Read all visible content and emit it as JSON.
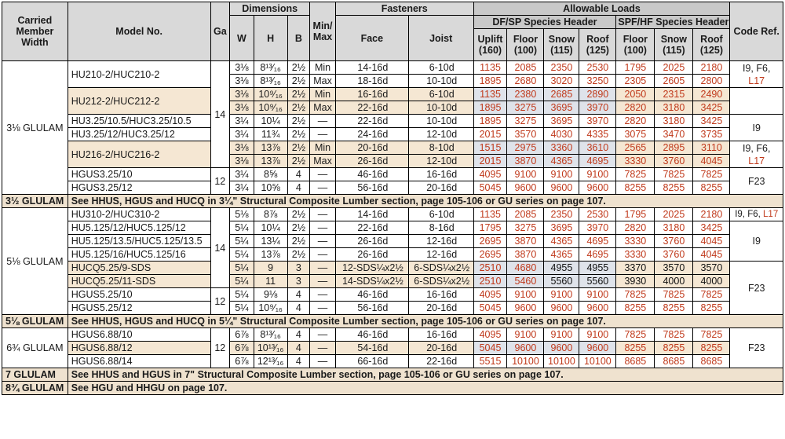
{
  "headers": {
    "carried_member_width": "Carried Member Width",
    "model_no": "Model No.",
    "ga": "Ga",
    "dimensions": "Dimensions",
    "w": "W",
    "h": "H",
    "b": "B",
    "min_max": "Min/ Max",
    "fasteners": "Fasteners",
    "face": "Face",
    "joist": "Joist",
    "allowable_loads": "Allowable Loads",
    "df_sp": "DF/SP Species Header",
    "spf_hf": "SPF/HF Species Header",
    "code_ref": "Code Ref.",
    "uplift": "Uplift (160)",
    "floor": "Floor (100)",
    "snow": "Snow (115)",
    "roof": "Roof (125)",
    "floor2": "Floor (100)",
    "snow2": "Snow (115)",
    "roof2": "Roof (125)"
  },
  "groups": [
    {
      "width": "3⅛ GLULAM",
      "ga_top": "14",
      "ga_bottom": "12",
      "rows": [
        [
          "HU210-2/HUC210-2",
          "3⅛",
          "8¹³⁄₁₆",
          "2½",
          "Min",
          "14-16d",
          "6-10d",
          "1135",
          "2085",
          "2350",
          "2530",
          "1795",
          "2025",
          "2180"
        ],
        [
          "",
          "3⅛",
          "8¹³⁄₁₆",
          "2½",
          "Max",
          "18-16d",
          "10-10d",
          "1895",
          "2680",
          "3020",
          "3250",
          "2305",
          "2605",
          "2800"
        ],
        [
          "HU212-2/HUC212-2",
          "3⅛",
          "10⁹⁄₁₆",
          "2½",
          "Min",
          "16-16d",
          "6-10d",
          "1135",
          "2380",
          "2685",
          "2890",
          "2050",
          "2315",
          "2490"
        ],
        [
          "",
          "3⅛",
          "10⁹⁄₁₆",
          "2½",
          "Max",
          "22-16d",
          "10-10d",
          "1895",
          "3275",
          "3695",
          "3970",
          "2820",
          "3180",
          "3425"
        ],
        [
          "HU3.25/10.5/HUC3.25/10.5",
          "3¼",
          "10¼",
          "2½",
          "—",
          "22-16d",
          "10-10d",
          "1895",
          "3275",
          "3695",
          "3970",
          "2820",
          "3180",
          "3425"
        ],
        [
          "HU3.25/12/HUC3.25/12",
          "3¼",
          "11¾",
          "2½",
          "—",
          "24-16d",
          "12-10d",
          "2015",
          "3570",
          "4030",
          "4335",
          "3075",
          "3470",
          "3735"
        ],
        [
          "HU216-2/HUC216-2",
          "3⅛",
          "13⅞",
          "2½",
          "Min",
          "20-16d",
          "8-10d",
          "1515",
          "2975",
          "3360",
          "3610",
          "2565",
          "2895",
          "3110"
        ],
        [
          "",
          "3⅛",
          "13⅞",
          "2½",
          "Max",
          "26-16d",
          "12-10d",
          "2015",
          "3870",
          "4365",
          "4695",
          "3330",
          "3760",
          "4045"
        ],
        [
          "HGUS3.25/10",
          "3¼",
          "8⅝",
          "4",
          "—",
          "46-16d",
          "16-16d",
          "4095",
          "9100",
          "9100",
          "9100",
          "7825",
          "7825",
          "7825"
        ],
        [
          "HGUS3.25/12",
          "3¼",
          "10⅝",
          "4",
          "—",
          "56-16d",
          "20-16d",
          "5045",
          "9600",
          "9600",
          "9600",
          "8255",
          "8255",
          "8255"
        ]
      ],
      "codes": [
        "I9, F6,",
        "L17",
        "I9",
        "I9, F6,",
        "L17",
        "F23"
      ]
    },
    {
      "width": "5⅛ GLULAM",
      "ga_top": "14",
      "ga_bottom": "12",
      "rows": [
        [
          "HU310-2/HUC310-2",
          "5⅛",
          "8⅞",
          "2½",
          "—",
          "14-16d",
          "6-10d",
          "1135",
          "2085",
          "2350",
          "2530",
          "1795",
          "2025",
          "2180"
        ],
        [
          "HU5.125/12/HUC5.125/12",
          "5¼",
          "10¼",
          "2½",
          "—",
          "22-16d",
          "8-16d",
          "1795",
          "3275",
          "3695",
          "3970",
          "2820",
          "3180",
          "3425"
        ],
        [
          "HU5.125/13.5/HUC5.125/13.5",
          "5¼",
          "13¼",
          "2½",
          "—",
          "26-16d",
          "12-16d",
          "2695",
          "3870",
          "4365",
          "4695",
          "3330",
          "3760",
          "4045"
        ],
        [
          "HU5.125/16/HUC5.125/16",
          "5¼",
          "13⅞",
          "2½",
          "—",
          "26-16d",
          "12-16d",
          "2695",
          "3870",
          "4365",
          "4695",
          "3330",
          "3760",
          "4045"
        ],
        [
          "HUCQ5.25/9-SDS",
          "5¼",
          "9",
          "3",
          "—",
          "12-SDS¼x2½",
          "6-SDS¼x2½",
          "2510",
          "4680",
          "4955",
          "4955",
          "3370",
          "3570",
          "3570"
        ],
        [
          "HUCQ5.25/11-SDS",
          "5¼",
          "11",
          "3",
          "—",
          "14-SDS¼x2½",
          "6-SDS¼x2½",
          "2510",
          "5460",
          "5560",
          "5560",
          "3930",
          "4000",
          "4000"
        ],
        [
          "HGUS5.25/10",
          "5¼",
          "9⅛",
          "4",
          "—",
          "46-16d",
          "16-16d",
          "4095",
          "9100",
          "9100",
          "9100",
          "7825",
          "7825",
          "7825"
        ],
        [
          "HGUS5.25/12",
          "5¼",
          "10⁹⁄₁₆",
          "4",
          "—",
          "56-16d",
          "20-16d",
          "5045",
          "9600",
          "9600",
          "9600",
          "8255",
          "8255",
          "8255"
        ]
      ],
      "codes": [
        "I9, F6,",
        "L17",
        "I9",
        "F23"
      ]
    },
    {
      "width": "6¾ GLULAM",
      "ga": "12",
      "rows": [
        [
          "HGUS6.88/10",
          "6⅞",
          "8¹³⁄₁₆",
          "4",
          "—",
          "46-16d",
          "16-16d",
          "4095",
          "9100",
          "9100",
          "9100",
          "7825",
          "7825",
          "7825"
        ],
        [
          "HGUS6.88/12",
          "6⅞",
          "10¹³⁄₁₆",
          "4",
          "—",
          "54-16d",
          "20-16d",
          "5045",
          "9600",
          "9600",
          "9600",
          "8255",
          "8255",
          "8255"
        ],
        [
          "HGUS6.88/14",
          "6⅞",
          "12¹³⁄₁₆",
          "4",
          "—",
          "66-16d",
          "22-16d",
          "5515",
          "10100",
          "10100",
          "10100",
          "8685",
          "8685",
          "8685"
        ]
      ],
      "codes": [
        "F23"
      ]
    }
  ],
  "notes": [
    {
      "width": "3½ GLULAM",
      "text": "See HHUS, HGUS and HUCQ in 3¼\" Structural Composite Lumber section, page 105-106 or GU series on page 107."
    },
    {
      "width": "5⅛ GLULAM",
      "text": "See HHUS, HGUS and HUCQ in 5¼\" Structural Composite Lumber section, page 105-106 or GU series on page 107."
    },
    {
      "width": "7 GLULAM",
      "text": "See HHUS and HGUS in 7\" Structural Composite Lumber section, page 105-106 or GU series on page 107."
    },
    {
      "width": "8¾ GLULAM",
      "text": "See HGU and HHGU on page 107."
    }
  ]
}
